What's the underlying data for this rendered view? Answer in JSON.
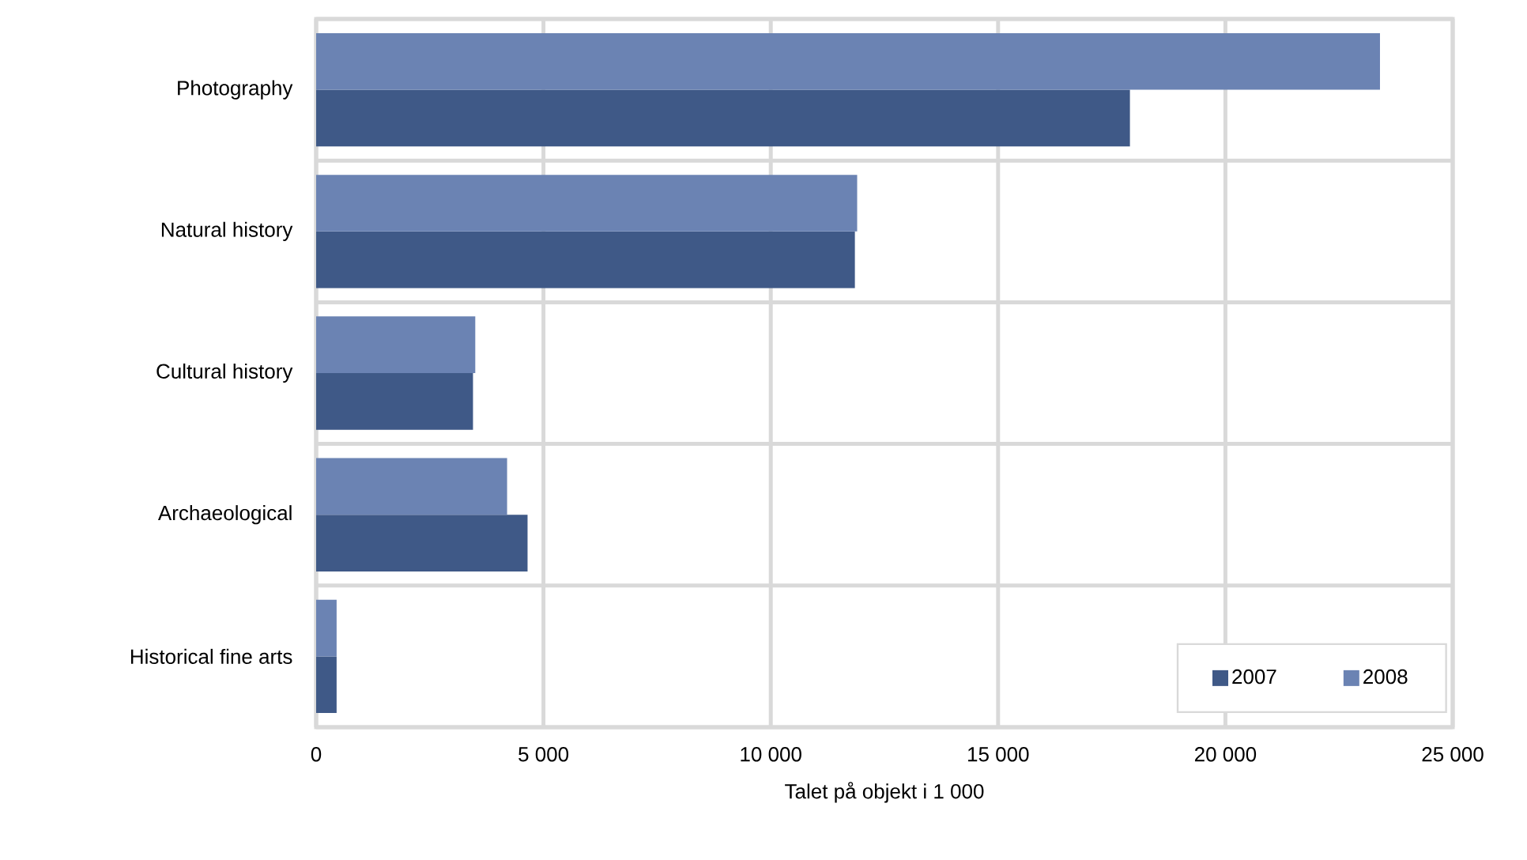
{
  "chart_data": {
    "type": "bar",
    "orientation": "horizontal",
    "xlabel": "Talet på objekt i 1 000",
    "categories": [
      "Photography",
      "Natural history",
      "Cultural history",
      "Archaeological",
      "Historical fine arts"
    ],
    "series": [
      {
        "name": "2007",
        "color": "#3f5987",
        "values": [
          17900,
          11850,
          3450,
          4650,
          450
        ]
      },
      {
        "name": "2008",
        "color": "#6b83b3",
        "values": [
          23400,
          11900,
          3500,
          4200,
          450
        ]
      }
    ],
    "xlim": [
      0,
      25000
    ],
    "xticks": [
      0,
      {
        "value": 5000,
        "label": "5 000"
      },
      {
        "value": 10000,
        "label": "10 000"
      },
      {
        "value": 15000,
        "label": "15 000"
      },
      {
        "value": 20000,
        "label": "20 000"
      },
      {
        "value": 25000,
        "label": "25 000"
      }
    ],
    "grid": true,
    "legend": "bottom right"
  }
}
